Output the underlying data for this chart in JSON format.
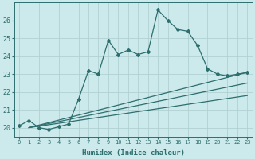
{
  "xlabel": "Humidex (Indice chaleur)",
  "bg_color": "#cce9eb",
  "grid_color": "#b0d0d2",
  "line_color": "#2d6e6e",
  "xlim": [
    -0.5,
    23.5
  ],
  "ylim": [
    19.5,
    27.0
  ],
  "yticks": [
    20,
    21,
    22,
    23,
    24,
    25,
    26
  ],
  "xticks": [
    0,
    1,
    2,
    3,
    4,
    5,
    6,
    7,
    8,
    9,
    10,
    11,
    12,
    13,
    14,
    15,
    16,
    17,
    18,
    19,
    20,
    21,
    22,
    23
  ],
  "series": [
    {
      "x": [
        0,
        1,
        2,
        3,
        4,
        5,
        6,
        7,
        8,
        9,
        10,
        11,
        12,
        13,
        14,
        15,
        16,
        17,
        18,
        19,
        20,
        21,
        22,
        23
      ],
      "y": [
        20.1,
        20.4,
        20.0,
        19.9,
        20.05,
        20.2,
        21.6,
        23.2,
        23.0,
        24.9,
        24.1,
        24.35,
        24.1,
        24.25,
        26.6,
        26.0,
        25.5,
        25.4,
        24.6,
        23.3,
        23.0,
        22.9,
        23.0,
        23.1
      ],
      "marker": "D",
      "markersize": 2.0,
      "linewidth": 0.9,
      "linestyle": "-"
    },
    {
      "x": [
        1,
        23
      ],
      "y": [
        20.0,
        23.1
      ],
      "marker": null,
      "markersize": 0,
      "linewidth": 0.9,
      "linestyle": "-"
    },
    {
      "x": [
        1,
        23
      ],
      "y": [
        20.0,
        22.5
      ],
      "marker": null,
      "markersize": 0,
      "linewidth": 0.9,
      "linestyle": "-"
    },
    {
      "x": [
        1,
        23
      ],
      "y": [
        20.0,
        21.8
      ],
      "marker": null,
      "markersize": 0,
      "linewidth": 0.9,
      "linestyle": "-"
    }
  ]
}
